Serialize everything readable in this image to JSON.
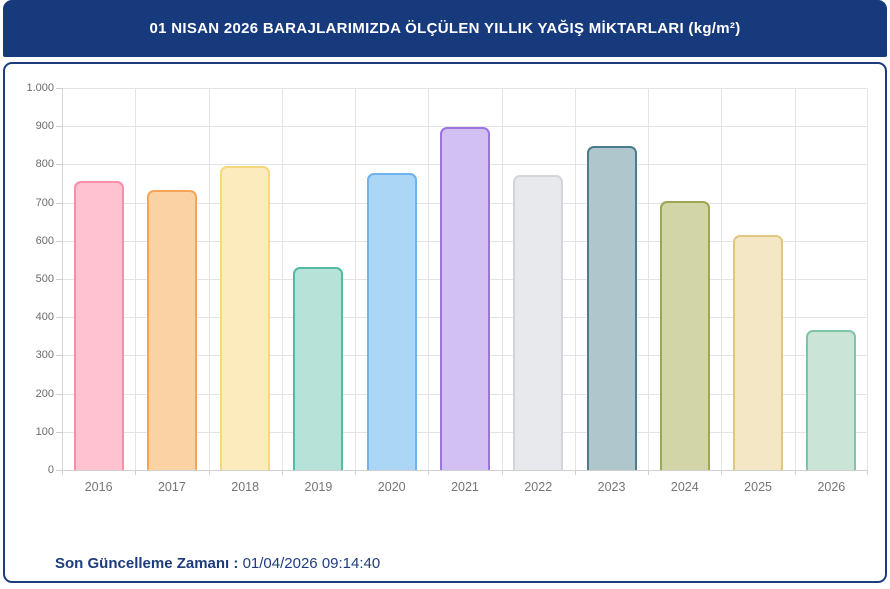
{
  "header": {
    "title": "01 NISAN 2026 BARAJLARIMIZDA ÖLÇÜLEN YILLIK YAĞIŞ MİKTARLARI (kg/m²)"
  },
  "footer": {
    "label": "Son Güncelleme Zamanı",
    "separator": " : ",
    "value": "01/04/2026 09:14:40"
  },
  "colors": {
    "header_bg": "#173A7C",
    "panel_border": "#1E3C7C",
    "gridline": "#E4E4E4",
    "axis_line": "#CFCFCF",
    "ytick_label": "#6B6B6B",
    "xtick_label": "#757575",
    "footer_text": "#1E3C7C"
  },
  "chart_data": {
    "type": "bar",
    "title": "01 NISAN 2026 BARAJLARIMIZDA ÖLÇÜLEN YILLIK YAĞIŞ MİKTARLARI (kg/m²)",
    "xlabel": "",
    "ylabel": "",
    "categories": [
      "2016",
      "2017",
      "2018",
      "2019",
      "2020",
      "2021",
      "2022",
      "2023",
      "2024",
      "2025",
      "2026"
    ],
    "values": [
      756,
      733,
      796,
      531,
      777,
      897,
      772,
      849,
      704,
      616,
      366
    ],
    "bar_fill_colors": [
      "#FFC2D1",
      "#FAD2A3",
      "#FCEBBD",
      "#B7E2D8",
      "#ABD6F6",
      "#D3C0F3",
      "#E8E9EC",
      "#AFC7CC",
      "#D2D5A6",
      "#F3E7C5",
      "#CBE4D8"
    ],
    "bar_border_colors": [
      "#F78FA7",
      "#F3A458",
      "#F7D77C",
      "#52BAA5",
      "#70B3EE",
      "#9C74E0",
      "#D3D5D9",
      "#4C7C8C",
      "#9CA653",
      "#DFC783",
      "#82C3A8"
    ],
    "ylim": [
      0,
      1000
    ],
    "ytick_interval": 100,
    "ytick_labels_top_to_bottom": [
      "1.000",
      "900",
      "800",
      "700",
      "600",
      "500",
      "400",
      "300",
      "200",
      "100",
      "0"
    ],
    "grid": true,
    "legend": false
  }
}
